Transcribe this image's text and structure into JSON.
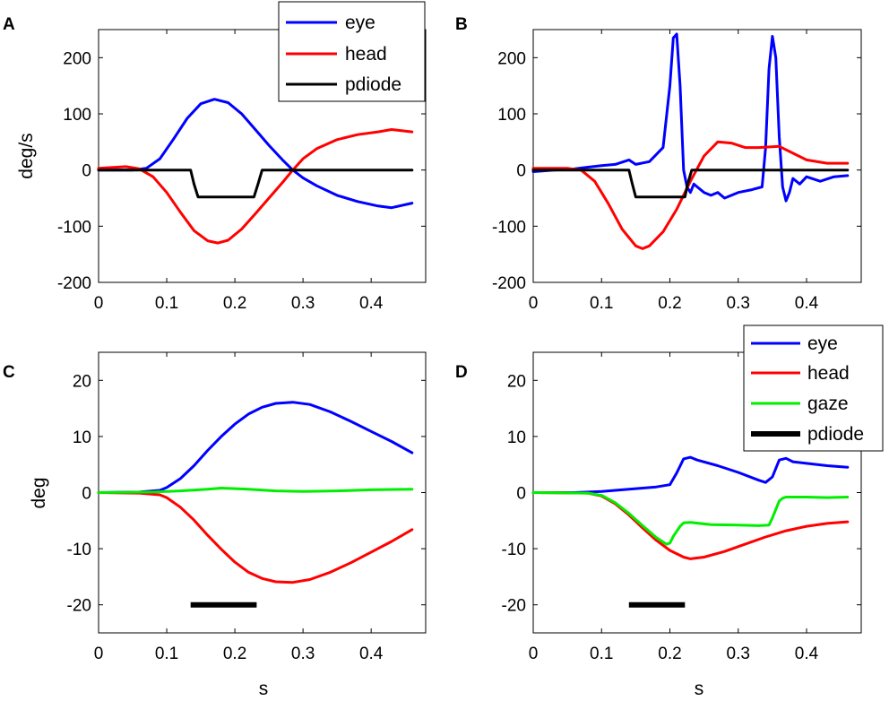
{
  "chart_data": [
    {
      "panel": "A",
      "type": "line",
      "title": "",
      "xlabel": "",
      "ylabel": "deg/s",
      "xlim": [
        0,
        0.48
      ],
      "ylim": [
        -200,
        250
      ],
      "xticks": [
        0,
        0.1,
        0.2,
        0.3,
        0.4
      ],
      "xtick_labels": [
        "0",
        "0.1",
        "0.2",
        "0.3",
        "0.4"
      ],
      "yticks": [
        -200,
        -100,
        0,
        100,
        200
      ],
      "ytick_labels": [
        "-200",
        "-100",
        "0",
        "100",
        "200"
      ],
      "legend": {
        "entries": [
          "eye",
          "head",
          "pdiode"
        ],
        "position": "top-right"
      },
      "series": [
        {
          "name": "eye",
          "color": "#0000ff",
          "x": [
            0,
            0.05,
            0.07,
            0.09,
            0.11,
            0.13,
            0.15,
            0.17,
            0.19,
            0.21,
            0.23,
            0.25,
            0.27,
            0.285,
            0.3,
            0.32,
            0.35,
            0.38,
            0.41,
            0.43,
            0.46
          ],
          "y": [
            0,
            0,
            3,
            20,
            55,
            92,
            118,
            126,
            120,
            100,
            72,
            44,
            18,
            0,
            -14,
            -28,
            -45,
            -56,
            -64,
            -67,
            -59
          ]
        },
        {
          "name": "head",
          "color": "#ff0000",
          "x": [
            0,
            0.04,
            0.06,
            0.08,
            0.1,
            0.12,
            0.14,
            0.16,
            0.175,
            0.19,
            0.21,
            0.23,
            0.25,
            0.27,
            0.285,
            0.3,
            0.32,
            0.35,
            0.38,
            0.41,
            0.43,
            0.46
          ],
          "y": [
            3,
            6,
            2,
            -12,
            -40,
            -75,
            -108,
            -126,
            -130,
            -125,
            -105,
            -78,
            -50,
            -22,
            0,
            20,
            38,
            54,
            63,
            68,
            72,
            68
          ]
        },
        {
          "name": "pdiode",
          "color": "#000000",
          "x": [
            0,
            0.135,
            0.14,
            0.146,
            0.228,
            0.234,
            0.24,
            0.46
          ],
          "y": [
            0,
            0,
            -25,
            -48,
            -48,
            -25,
            0,
            0
          ]
        }
      ]
    },
    {
      "panel": "B",
      "type": "line",
      "title": "",
      "xlabel": "",
      "ylabel": "",
      "xlim": [
        0,
        0.48
      ],
      "ylim": [
        -200,
        250
      ],
      "xticks": [
        0,
        0.1,
        0.2,
        0.3,
        0.4
      ],
      "xtick_labels": [
        "0",
        "0.1",
        "0.2",
        "0.3",
        "0.4"
      ],
      "yticks": [
        -200,
        -100,
        0,
        100,
        200
      ],
      "ytick_labels": [
        "-200",
        "-100",
        "0",
        "100",
        "200"
      ],
      "series": [
        {
          "name": "eye",
          "color": "#0000ff",
          "x": [
            0,
            0.03,
            0.06,
            0.08,
            0.1,
            0.12,
            0.14,
            0.15,
            0.17,
            0.19,
            0.2,
            0.205,
            0.21,
            0.215,
            0.22,
            0.225,
            0.23,
            0.235,
            0.24,
            0.25,
            0.26,
            0.27,
            0.28,
            0.3,
            0.32,
            0.335,
            0.34,
            0.345,
            0.35,
            0.355,
            0.36,
            0.365,
            0.37,
            0.375,
            0.38,
            0.39,
            0.4,
            0.42,
            0.44,
            0.46
          ],
          "y": [
            -3,
            0,
            2,
            5,
            8,
            10,
            18,
            10,
            15,
            40,
            150,
            235,
            242,
            150,
            0,
            -30,
            -40,
            -25,
            -30,
            -40,
            -45,
            -40,
            -50,
            -40,
            -35,
            -30,
            40,
            180,
            238,
            200,
            60,
            -30,
            -55,
            -40,
            -15,
            -25,
            -12,
            -20,
            -12,
            -10
          ]
        },
        {
          "name": "head",
          "color": "#ff0000",
          "x": [
            0,
            0.05,
            0.07,
            0.09,
            0.11,
            0.13,
            0.15,
            0.16,
            0.17,
            0.19,
            0.21,
            0.23,
            0.25,
            0.27,
            0.29,
            0.31,
            0.33,
            0.36,
            0.38,
            0.4,
            0.43,
            0.46
          ],
          "y": [
            3,
            3,
            0,
            -20,
            -60,
            -105,
            -135,
            -140,
            -135,
            -110,
            -70,
            -20,
            25,
            50,
            48,
            40,
            40,
            42,
            30,
            18,
            12,
            12
          ]
        },
        {
          "name": "pdiode",
          "color": "#000000",
          "x": [
            0,
            0.14,
            0.145,
            0.15,
            0.222,
            0.226,
            0.232,
            0.46
          ],
          "y": [
            0,
            0,
            -25,
            -48,
            -48,
            -25,
            0,
            0
          ]
        }
      ]
    },
    {
      "panel": "C",
      "type": "line",
      "title": "",
      "xlabel": "s",
      "ylabel": "deg",
      "xlim": [
        0,
        0.48
      ],
      "ylim": [
        -25,
        25
      ],
      "xticks": [
        0,
        0.1,
        0.2,
        0.3,
        0.4
      ],
      "xtick_labels": [
        "0",
        "0.1",
        "0.2",
        "0.3",
        "0.4"
      ],
      "yticks": [
        -20,
        -10,
        0,
        10,
        20
      ],
      "ytick_labels": [
        "-20",
        "-10",
        "0",
        "10",
        "20"
      ],
      "series": [
        {
          "name": "eye",
          "color": "#0000ff",
          "x": [
            0,
            0.06,
            0.09,
            0.1,
            0.12,
            0.14,
            0.16,
            0.18,
            0.2,
            0.22,
            0.24,
            0.26,
            0.285,
            0.31,
            0.34,
            0.37,
            0.4,
            0.43,
            0.46
          ],
          "y": [
            0,
            0.1,
            0.4,
            0.9,
            2.5,
            4.8,
            7.5,
            10,
            12.2,
            14,
            15.2,
            15.9,
            16.1,
            15.7,
            14.4,
            12.7,
            10.9,
            9.1,
            7.1
          ]
        },
        {
          "name": "head",
          "color": "#ff0000",
          "x": [
            0,
            0.06,
            0.09,
            0.1,
            0.12,
            0.14,
            0.16,
            0.18,
            0.2,
            0.22,
            0.24,
            0.26,
            0.285,
            0.31,
            0.34,
            0.37,
            0.4,
            0.43,
            0.46
          ],
          "y": [
            0,
            -0.1,
            -0.4,
            -0.9,
            -2.6,
            -4.9,
            -7.6,
            -10.1,
            -12.4,
            -14.2,
            -15.3,
            -15.9,
            -16,
            -15.5,
            -14.2,
            -12.5,
            -10.6,
            -8.7,
            -6.6
          ]
        },
        {
          "name": "gaze",
          "color": "#00ee00",
          "x": [
            0,
            0.08,
            0.12,
            0.16,
            0.18,
            0.22,
            0.26,
            0.3,
            0.35,
            0.4,
            0.46
          ],
          "y": [
            0,
            0.1,
            0.3,
            0.6,
            0.8,
            0.6,
            0.3,
            0.2,
            0.3,
            0.5,
            0.6
          ]
        },
        {
          "name": "pdiode",
          "color": "#000000",
          "x": [
            0.135,
            0.232
          ],
          "y": [
            -20,
            -20
          ]
        }
      ]
    },
    {
      "panel": "D",
      "type": "line",
      "title": "",
      "xlabel": "s",
      "ylabel": "",
      "xlim": [
        0,
        0.48
      ],
      "ylim": [
        -25,
        25
      ],
      "xticks": [
        0,
        0.1,
        0.2,
        0.3,
        0.4
      ],
      "xtick_labels": [
        "0",
        "0.1",
        "0.2",
        "0.3",
        "0.4"
      ],
      "yticks": [
        -20,
        -10,
        0,
        10,
        20
      ],
      "ytick_labels": [
        "-20",
        "-10",
        "0",
        "10",
        "20"
      ],
      "legend": {
        "entries": [
          "eye",
          "head",
          "gaze",
          "pdiode"
        ],
        "position": "top-right"
      },
      "series": [
        {
          "name": "eye",
          "color": "#0000ff",
          "x": [
            0,
            0.06,
            0.1,
            0.14,
            0.18,
            0.2,
            0.21,
            0.22,
            0.23,
            0.24,
            0.27,
            0.3,
            0.33,
            0.34,
            0.35,
            0.36,
            0.37,
            0.38,
            0.4,
            0.43,
            0.46
          ],
          "y": [
            0,
            0,
            0.2,
            0.6,
            1,
            1.4,
            3.5,
            6,
            6.3,
            5.8,
            4.8,
            3.6,
            2.2,
            1.8,
            2.8,
            5.8,
            6.1,
            5.5,
            5.2,
            4.8,
            4.5
          ]
        },
        {
          "name": "head",
          "color": "#ff0000",
          "x": [
            0,
            0.08,
            0.1,
            0.12,
            0.14,
            0.16,
            0.18,
            0.2,
            0.22,
            0.23,
            0.25,
            0.28,
            0.31,
            0.34,
            0.37,
            0.4,
            0.43,
            0.46
          ],
          "y": [
            0,
            -0.1,
            -0.6,
            -2,
            -4,
            -6.3,
            -8.5,
            -10.3,
            -11.5,
            -11.8,
            -11.5,
            -10.5,
            -9.2,
            -7.9,
            -6.8,
            -6,
            -5.5,
            -5.2
          ]
        },
        {
          "name": "gaze",
          "color": "#00ee00",
          "x": [
            0,
            0.08,
            0.1,
            0.12,
            0.14,
            0.16,
            0.18,
            0.195,
            0.2,
            0.205,
            0.215,
            0.22,
            0.23,
            0.26,
            0.3,
            0.33,
            0.345,
            0.35,
            0.36,
            0.365,
            0.37,
            0.4,
            0.43,
            0.46
          ],
          "y": [
            0,
            -0.1,
            -0.5,
            -1.8,
            -3.7,
            -5.9,
            -8,
            -9.2,
            -9,
            -7.8,
            -6,
            -5.4,
            -5.3,
            -5.7,
            -5.8,
            -5.9,
            -5.8,
            -4.5,
            -1.5,
            -1,
            -0.8,
            -0.8,
            -0.9,
            -0.8
          ]
        },
        {
          "name": "pdiode",
          "color": "#000000",
          "x": [
            0.14,
            0.222
          ],
          "y": [
            -20,
            -20
          ]
        }
      ]
    }
  ]
}
